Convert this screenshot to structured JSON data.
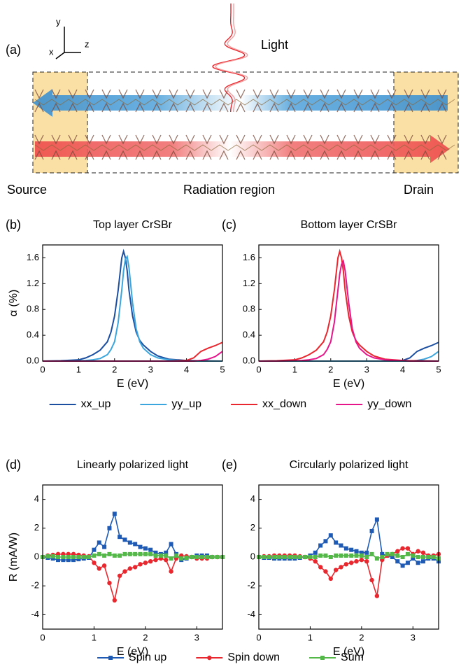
{
  "schematic": {
    "label": "(a)",
    "axes": [
      "y",
      "x",
      "z"
    ],
    "light": "Light",
    "regions": [
      "Source",
      "Radiation region",
      "Drain"
    ]
  },
  "chart_data": [
    {
      "type": "line",
      "panel": "(b)",
      "title": "Top layer CrSBr",
      "xlabel": "E (eV)",
      "ylabel": "α (%)",
      "legend": "bottom",
      "xlim": [
        0,
        5
      ],
      "ylim": [
        0,
        1.8
      ],
      "xticks": [
        0,
        1,
        2,
        3,
        4,
        5
      ],
      "yticks": [
        {
          "value": 0,
          "label": "0.0"
        },
        {
          "value": 0.4,
          "label": "0.4"
        },
        {
          "value": 0.8,
          "label": "0.8"
        },
        {
          "value": 1.2,
          "label": "1.2"
        },
        {
          "value": 1.6,
          "label": "1.6"
        }
      ],
      "x": [
        0,
        0.5,
        1.0,
        1.2,
        1.4,
        1.6,
        1.8,
        1.9,
        2.0,
        2.1,
        2.2,
        2.25,
        2.3,
        2.35,
        2.4,
        2.5,
        2.6,
        2.7,
        2.8,
        3.0,
        3.2,
        3.5,
        4.0,
        4.2,
        4.4,
        4.6,
        4.8,
        5.0
      ],
      "series": [
        {
          "name": "xx_up",
          "color": "#1c4fa0",
          "values": [
            0,
            0.005,
            0.02,
            0.05,
            0.1,
            0.17,
            0.3,
            0.45,
            0.7,
            1.1,
            1.6,
            1.7,
            1.6,
            1.4,
            1.1,
            0.7,
            0.45,
            0.32,
            0.25,
            0.15,
            0.08,
            0.03,
            0.01,
            0.005,
            0.005,
            0.003,
            0.002,
            0
          ]
        },
        {
          "name": "yy_up",
          "color": "#3aa6dd",
          "values": [
            0,
            0,
            0.005,
            0.01,
            0.02,
            0.04,
            0.1,
            0.18,
            0.3,
            0.6,
            1.1,
            1.4,
            1.58,
            1.62,
            1.45,
            0.9,
            0.5,
            0.3,
            0.2,
            0.1,
            0.05,
            0.02,
            0.005,
            0,
            0,
            0,
            0,
            0
          ]
        },
        {
          "name": "xx_down",
          "color": "#e8272f",
          "values": [
            0,
            0,
            0,
            0,
            0,
            0,
            0,
            0,
            0,
            0,
            0,
            0,
            0,
            0,
            0,
            0,
            0,
            0,
            0,
            0,
            0,
            0,
            0.01,
            0.05,
            0.15,
            0.2,
            0.24,
            0.29
          ]
        },
        {
          "name": "yy_down",
          "color": "#e6158a",
          "values": [
            0,
            0,
            0,
            0,
            0,
            0,
            0,
            0,
            0,
            0,
            0,
            0,
            0,
            0,
            0,
            0,
            0,
            0,
            0,
            0,
            0,
            0,
            0,
            0,
            0.01,
            0.03,
            0.07,
            0.15
          ]
        }
      ]
    },
    {
      "type": "line",
      "panel": "(c)",
      "title": "Bottom layer CrSBr",
      "xlabel": "E (eV)",
      "xlim": [
        0,
        5
      ],
      "ylim": [
        0,
        1.8
      ],
      "xticks": [
        0,
        1,
        2,
        3,
        4,
        5
      ],
      "yticks": [
        {
          "value": 0,
          "label": "0.0"
        },
        {
          "value": 0.4,
          "label": "0.4"
        },
        {
          "value": 0.8,
          "label": "0.8"
        },
        {
          "value": 1.2,
          "label": "1.2"
        },
        {
          "value": 1.6,
          "label": "1.6"
        }
      ],
      "x": [
        0,
        0.5,
        1.0,
        1.2,
        1.4,
        1.6,
        1.8,
        1.9,
        2.0,
        2.1,
        2.2,
        2.25,
        2.3,
        2.35,
        2.4,
        2.5,
        2.6,
        2.7,
        2.8,
        3.0,
        3.2,
        3.5,
        4.0,
        4.2,
        4.4,
        4.6,
        4.8,
        5.0
      ],
      "series": [
        {
          "color": "#1c4fa0",
          "values": [
            0,
            0,
            0,
            0,
            0,
            0,
            0,
            0,
            0,
            0,
            0,
            0,
            0,
            0,
            0,
            0,
            0,
            0,
            0,
            0,
            0,
            0,
            0.01,
            0.05,
            0.15,
            0.2,
            0.24,
            0.29
          ]
        },
        {
          "color": "#3aa6dd",
          "values": [
            0,
            0,
            0,
            0,
            0,
            0,
            0,
            0,
            0,
            0,
            0,
            0,
            0,
            0,
            0,
            0,
            0,
            0,
            0,
            0,
            0,
            0,
            0,
            0,
            0.01,
            0.03,
            0.07,
            0.15
          ]
        },
        {
          "color": "#e8272f",
          "values": [
            0,
            0.005,
            0.02,
            0.05,
            0.1,
            0.17,
            0.3,
            0.45,
            0.7,
            1.1,
            1.6,
            1.7,
            1.6,
            1.4,
            1.1,
            0.7,
            0.45,
            0.32,
            0.25,
            0.15,
            0.08,
            0.03,
            0.01,
            0.005,
            0.005,
            0.003,
            0.002,
            0
          ]
        },
        {
          "color": "#e6158a",
          "values": [
            0,
            0,
            0.005,
            0.01,
            0.02,
            0.04,
            0.1,
            0.18,
            0.3,
            0.6,
            1.1,
            1.35,
            1.5,
            1.55,
            1.4,
            0.9,
            0.5,
            0.3,
            0.2,
            0.1,
            0.05,
            0.02,
            0.005,
            0,
            0,
            0,
            0,
            0
          ]
        }
      ]
    },
    {
      "type": "line",
      "panel": "(d)",
      "title": "Linearly polarized light",
      "xlabel": "E (eV)",
      "ylabel": "R (mA/W)",
      "legend": "bottom",
      "xlim": [
        0,
        3.5
      ],
      "ylim": [
        -5,
        5
      ],
      "xticks": [
        0,
        1,
        2,
        3
      ],
      "yticks": [
        -4,
        -2,
        0,
        2,
        4
      ],
      "x": [
        0,
        0.1,
        0.2,
        0.3,
        0.4,
        0.5,
        0.6,
        0.7,
        0.8,
        0.9,
        1.0,
        1.1,
        1.2,
        1.3,
        1.4,
        1.5,
        1.6,
        1.7,
        1.8,
        1.9,
        2.0,
        2.1,
        2.2,
        2.3,
        2.4,
        2.5,
        2.6,
        2.7,
        2.8,
        2.9,
        3.0,
        3.1,
        3.2,
        3.3,
        3.4,
        3.5
      ],
      "series": [
        {
          "name": "Spin up",
          "color": "#1f5bb5",
          "marker": "square",
          "values": [
            0,
            -0.05,
            -0.1,
            -0.2,
            -0.2,
            -0.2,
            -0.2,
            -0.15,
            -0.1,
            -0.05,
            0.5,
            1.0,
            0.7,
            2.0,
            3.0,
            1.4,
            1.2,
            1.0,
            0.9,
            0.7,
            0.6,
            0.5,
            0.3,
            0.2,
            0.3,
            0.9,
            0.2,
            -0.2,
            -0.1,
            0,
            0.1,
            0.1,
            0.1,
            0,
            0,
            0
          ]
        },
        {
          "name": "Spin down",
          "color": "#e8282e",
          "marker": "circle",
          "values": [
            0,
            0.1,
            0.15,
            0.2,
            0.2,
            0.2,
            0.2,
            0.15,
            0.1,
            0.05,
            -0.4,
            -0.8,
            -0.6,
            -1.8,
            -3.0,
            -1.3,
            -1.0,
            -0.8,
            -0.7,
            -0.5,
            -0.4,
            -0.3,
            -0.2,
            -0.1,
            -0.2,
            -1.0,
            -0.1,
            0.1,
            0.05,
            0,
            -0.1,
            -0.1,
            -0.1,
            0,
            0,
            0
          ]
        },
        {
          "name": "Sum",
          "color": "#53b848",
          "marker": "square",
          "values": [
            0,
            0.05,
            0.05,
            0,
            0,
            0,
            0,
            0,
            0,
            0,
            0.1,
            0.2,
            0.1,
            0.2,
            0.1,
            0.1,
            0.2,
            0.2,
            0.2,
            0.2,
            0.2,
            0.2,
            0.1,
            0.1,
            0.1,
            -0.1,
            0.1,
            -0.1,
            -0.05,
            0,
            0,
            0,
            0,
            0,
            0,
            0
          ]
        }
      ]
    },
    {
      "type": "line",
      "panel": "(e)",
      "title": "Circularly polarized light",
      "xlabel": "E (eV)",
      "xlim": [
        0,
        3.5
      ],
      "ylim": [
        -5,
        5
      ],
      "xticks": [
        0,
        1,
        2,
        3
      ],
      "yticks": [
        -4,
        -2,
        0,
        2,
        4
      ],
      "x": [
        0,
        0.1,
        0.2,
        0.3,
        0.4,
        0.5,
        0.6,
        0.7,
        0.8,
        0.9,
        1.0,
        1.1,
        1.2,
        1.3,
        1.4,
        1.5,
        1.6,
        1.7,
        1.8,
        1.9,
        2.0,
        2.1,
        2.2,
        2.3,
        2.4,
        2.5,
        2.6,
        2.7,
        2.8,
        2.9,
        3.0,
        3.1,
        3.2,
        3.3,
        3.4,
        3.5
      ],
      "series": [
        {
          "color": "#1f5bb5",
          "marker": "square",
          "values": [
            0,
            -0.05,
            -0.05,
            -0.1,
            -0.1,
            -0.1,
            -0.1,
            -0.1,
            -0.05,
            0,
            0.1,
            0.3,
            0.8,
            1.1,
            1.5,
            1.0,
            0.8,
            0.6,
            0.5,
            0.4,
            0.3,
            0.3,
            1.8,
            2.6,
            0.2,
            0.1,
            0,
            -0.3,
            -0.6,
            -0.4,
            -0.1,
            -0.4,
            -0.3,
            -0.1,
            -0.1,
            -0.3
          ]
        },
        {
          "color": "#e8282e",
          "marker": "circle",
          "values": [
            0,
            0.05,
            0.05,
            0.1,
            0.1,
            0.1,
            0.1,
            0.1,
            0.05,
            0,
            -0.1,
            -0.3,
            -0.7,
            -1.0,
            -1.5,
            -0.9,
            -0.7,
            -0.5,
            -0.4,
            -0.3,
            -0.2,
            -0.3,
            -1.6,
            -2.7,
            -0.2,
            0.1,
            0.2,
            0.4,
            0.6,
            0.6,
            0.2,
            0.4,
            0.3,
            0.1,
            0.1,
            0.2
          ]
        },
        {
          "color": "#53b848",
          "marker": "square",
          "values": [
            0,
            0,
            0,
            0,
            0,
            0,
            0,
            0,
            0,
            0,
            0,
            0,
            0.1,
            0.1,
            0,
            0.1,
            0.1,
            0.1,
            0.1,
            0.1,
            0.1,
            0,
            0.2,
            -0.1,
            0,
            0.2,
            0.2,
            0.1,
            0,
            0.2,
            0.1,
            0,
            0,
            0,
            0,
            -0.1
          ]
        }
      ]
    }
  ]
}
